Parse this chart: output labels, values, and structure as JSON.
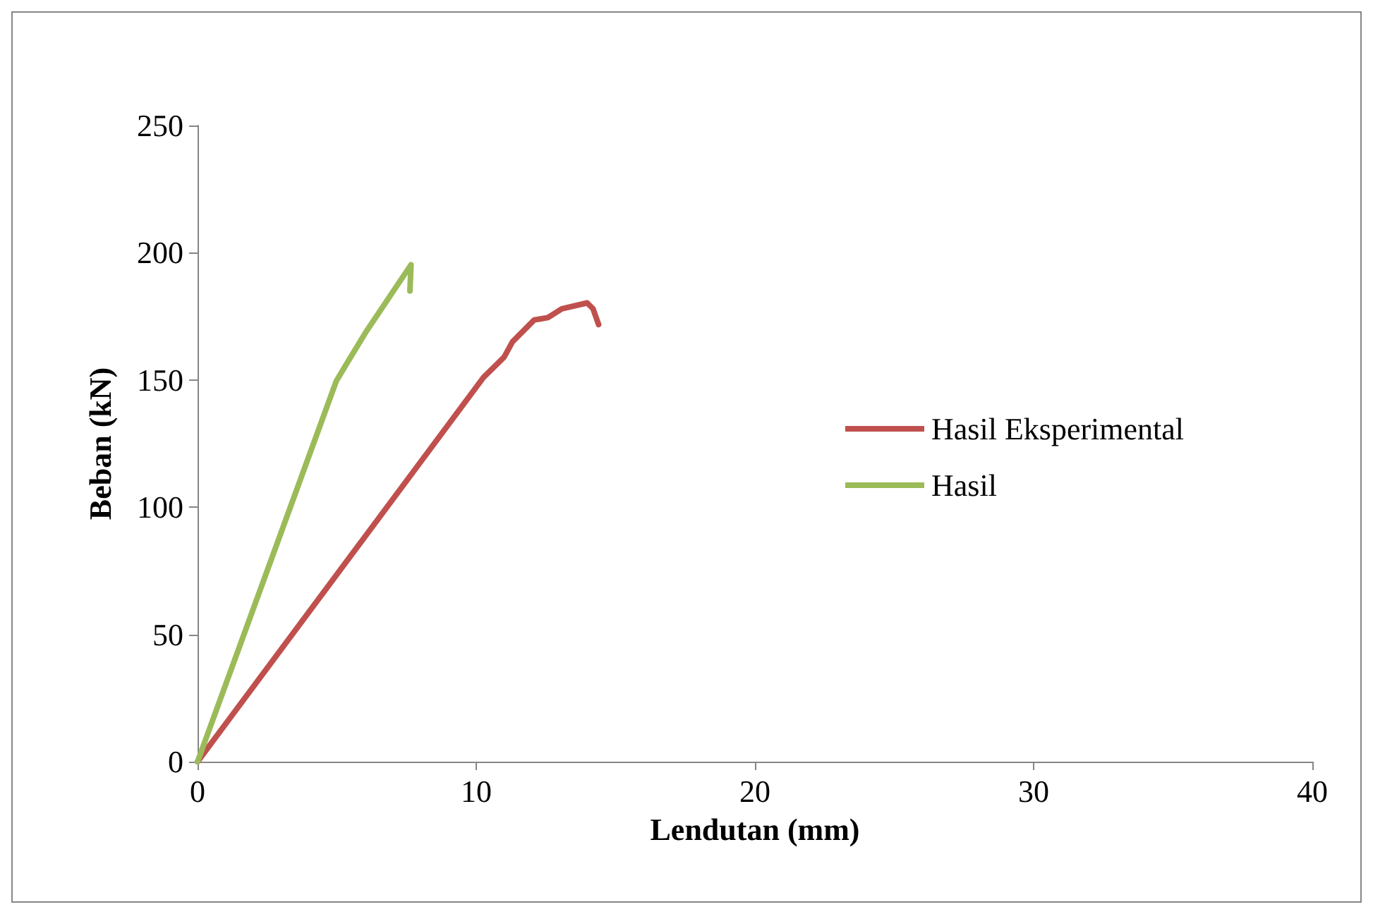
{
  "chart_data": {
    "type": "line",
    "xlabel": "Lendutan (mm)",
    "ylabel": "Beban (kN)",
    "xlim": [
      0,
      40
    ],
    "xticks": [
      0,
      10,
      20,
      30,
      40
    ],
    "ylim": [
      0,
      250
    ],
    "yticks": [
      0,
      50,
      100,
      150,
      200,
      250
    ],
    "grid": false,
    "legend": "right",
    "marker": "none",
    "line_style": "solid",
    "series": [
      {
        "name": "Hasil Eksperimental",
        "color": "#c0504d",
        "x": [
          0,
          10.26,
          11.0,
          11.3,
          12.08,
          12.57,
          13.07,
          13.98,
          14.19,
          14.39
        ],
        "values": [
          0,
          151,
          159,
          165,
          173.6,
          174.5,
          178,
          180.3,
          178,
          171.8
        ]
      },
      {
        "name": "Hasil",
        "color": "#9bbb59",
        "x": [
          0,
          4.98,
          5.3,
          6.05,
          7.66,
          7.62
        ],
        "values": [
          0,
          149.6,
          155.5,
          169,
          195.3,
          185
        ]
      }
    ]
  }
}
